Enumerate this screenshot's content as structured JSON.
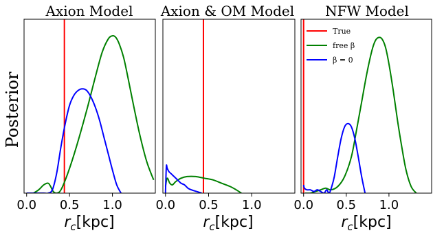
{
  "figure": {
    "ylabel": "Posterior"
  },
  "chart_data": [
    {
      "type": "line",
      "title": "Axion Model",
      "xlabel": "r_c[kpc]",
      "xlim": [
        -0.03,
        1.5
      ],
      "ylim": [
        0,
        1.05
      ],
      "xticks": [
        0.0,
        0.5,
        1.0
      ],
      "xtick_labels": [
        "0.0",
        "0.5",
        "1.0"
      ],
      "ytick_labels": false,
      "true_value": 0.44,
      "series": [
        {
          "key": "free_beta",
          "color": "#008000",
          "x": [
            0.08,
            0.14,
            0.2,
            0.25,
            0.28,
            0.31,
            0.35,
            0.4,
            0.48,
            0.58,
            0.7,
            0.8,
            0.88,
            0.95,
            1.0,
            1.04,
            1.08,
            1.13,
            1.18,
            1.25,
            1.32,
            1.4,
            1.48
          ],
          "y": [
            0.0,
            0.02,
            0.05,
            0.06,
            0.04,
            0.01,
            0.0,
            0.02,
            0.12,
            0.28,
            0.5,
            0.7,
            0.85,
            0.93,
            0.95,
            0.94,
            0.9,
            0.82,
            0.7,
            0.52,
            0.35,
            0.19,
            0.08
          ]
        },
        {
          "key": "beta_zero",
          "color": "#0000ff",
          "x": [
            0.0,
            0.05,
            0.1,
            0.15,
            0.2,
            0.25,
            0.3,
            0.35,
            0.4,
            0.45,
            0.5,
            0.55,
            0.6,
            0.65,
            0.7,
            0.75,
            0.8,
            0.85,
            0.9,
            0.95,
            1.0,
            1.05,
            1.1
          ],
          "y": [
            0.0,
            0.0,
            0.0,
            0.0,
            0.0,
            0.0,
            0.02,
            0.12,
            0.28,
            0.42,
            0.53,
            0.59,
            0.62,
            0.63,
            0.62,
            0.58,
            0.52,
            0.44,
            0.34,
            0.24,
            0.14,
            0.05,
            0.0
          ]
        }
      ]
    },
    {
      "type": "line",
      "title": "Axion & OM Model",
      "xlabel": "r_c[kpc]",
      "xlim": [
        -0.03,
        1.5
      ],
      "ylim": [
        0,
        1.05
      ],
      "xticks": [
        0.0,
        0.5,
        1.0
      ],
      "xtick_labels": [
        "0.0",
        "0.5",
        "1.0"
      ],
      "ytick_labels": false,
      "true_value": 0.44,
      "series": [
        {
          "key": "free_beta",
          "color": "#008000",
          "x": [
            0.0,
            0.02,
            0.05,
            0.08,
            0.12,
            0.18,
            0.25,
            0.35,
            0.45,
            0.55,
            0.65,
            0.75,
            0.82,
            0.88
          ],
          "y": [
            0.04,
            0.09,
            0.06,
            0.05,
            0.07,
            0.09,
            0.1,
            0.1,
            0.09,
            0.08,
            0.06,
            0.04,
            0.02,
            0.0
          ]
        },
        {
          "key": "beta_zero",
          "color": "#0000ff",
          "x": [
            0.0,
            0.01,
            0.02,
            0.04,
            0.06,
            0.08,
            0.1,
            0.14,
            0.18,
            0.22,
            0.26,
            0.3,
            0.36,
            0.42
          ],
          "y": [
            0.0,
            0.16,
            0.15,
            0.13,
            0.12,
            0.11,
            0.1,
            0.08,
            0.06,
            0.05,
            0.03,
            0.02,
            0.01,
            0.0
          ]
        }
      ]
    },
    {
      "type": "line",
      "title": "NFW Model",
      "xlabel": "r_c[kpc]",
      "xlim": [
        -0.03,
        1.5
      ],
      "ylim": [
        0,
        1.05
      ],
      "xticks": [
        0.0,
        0.5,
        1.0
      ],
      "xtick_labels": [
        "0.0",
        "0.5",
        "1.0"
      ],
      "ytick_labels": false,
      "true_value": 0.0,
      "legend": {
        "position": "upper-left",
        "entries": [
          {
            "label": "True",
            "color": "#ff0000"
          },
          {
            "label": "free β",
            "color": "#008000"
          },
          {
            "label": "β = 0",
            "color": "#0000ff"
          }
        ]
      },
      "series": [
        {
          "key": "free_beta",
          "color": "#008000",
          "x": [
            0.02,
            0.08,
            0.14,
            0.2,
            0.26,
            0.32,
            0.4,
            0.48,
            0.56,
            0.62,
            0.68,
            0.74,
            0.8,
            0.84,
            0.88,
            0.92,
            0.96,
            1.0,
            1.05,
            1.1,
            1.15,
            1.2,
            1.26,
            1.32
          ],
          "y": [
            0.0,
            0.0,
            0.01,
            0.02,
            0.03,
            0.02,
            0.04,
            0.1,
            0.22,
            0.38,
            0.55,
            0.72,
            0.86,
            0.92,
            0.94,
            0.93,
            0.88,
            0.78,
            0.62,
            0.44,
            0.28,
            0.14,
            0.04,
            0.0
          ]
        },
        {
          "key": "beta_zero",
          "color": "#0000ff",
          "x": [
            0.0,
            0.01,
            0.04,
            0.08,
            0.12,
            0.16,
            0.2,
            0.24,
            0.27,
            0.3,
            0.33,
            0.36,
            0.4,
            0.44,
            0.48,
            0.52,
            0.56,
            0.6,
            0.64,
            0.68,
            0.72
          ],
          "y": [
            0.05,
            0.03,
            0.02,
            0.02,
            0.01,
            0.02,
            0.01,
            0.0,
            0.02,
            0.0,
            0.04,
            0.1,
            0.22,
            0.33,
            0.4,
            0.42,
            0.4,
            0.33,
            0.22,
            0.1,
            0.0
          ]
        }
      ]
    }
  ]
}
